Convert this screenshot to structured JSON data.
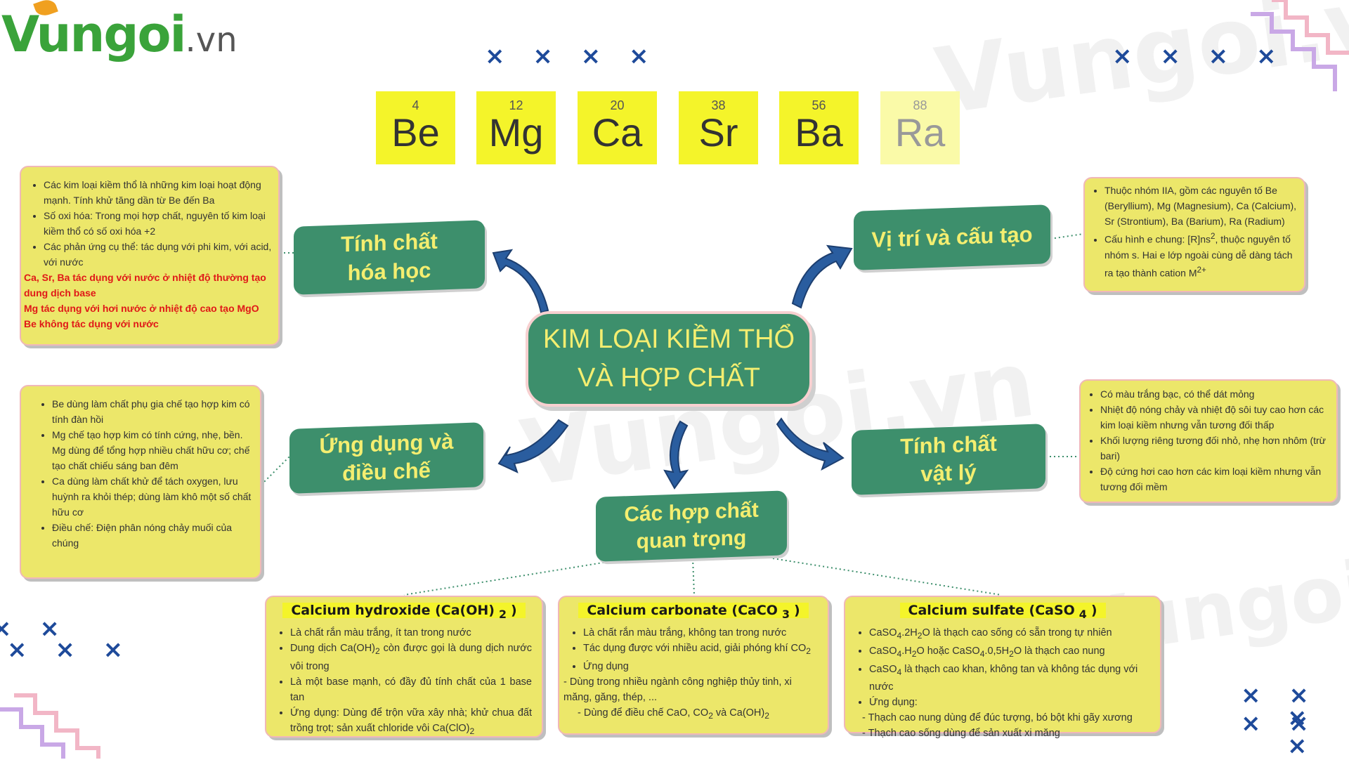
{
  "logo": {
    "main": "Vungoi",
    "suffix": ".vn"
  },
  "watermark": "Vungoi.vn",
  "decor": {
    "crosses4": "× × × ×",
    "crosses3": "× × ×",
    "crosses2": "× ×",
    "cross1": "×"
  },
  "elements": [
    {
      "number": "4",
      "symbol": "Be"
    },
    {
      "number": "12",
      "symbol": "Mg"
    },
    {
      "number": "20",
      "symbol": "Ca"
    },
    {
      "number": "38",
      "symbol": "Sr"
    },
    {
      "number": "56",
      "symbol": "Ba"
    },
    {
      "number": "88",
      "symbol": "Ra"
    }
  ],
  "center": {
    "line1": "KIM LOẠI KIỀM THỔ",
    "line2": "VÀ HỢP CHẤT"
  },
  "nodes": {
    "chem_line1": "Tính chất",
    "chem_line2": "hóa học",
    "position": "Vị trí và cấu tạo",
    "app_line1": "Ứng dụng và",
    "app_line2": "điều chế",
    "phys_line1": "Tính chất",
    "phys_line2": "vật lý",
    "comp_line1": "Các hợp chất",
    "comp_line2": "quan trọng"
  },
  "chem_info": {
    "items": [
      "Các kim loại kiềm thổ là những kim loại hoạt động mạnh. Tính khử tăng dần từ Be đến Ba",
      "Số oxi hóa: Trong mọi hợp chất, nguyên tố kim loại kiềm thổ có số oxi hóa +2",
      "Các phản ứng cụ thể: tác dụng với phi kim, với acid, với nước"
    ],
    "red": [
      "Ca, Sr, Ba tác dụng với nước ở nhiệt độ thường tạo dung dịch base",
      "Mg tác dụng với hơi nước ở nhiệt độ cao tạo MgO",
      "Be không tác dụng với nước"
    ]
  },
  "position_info": {
    "item1": "Thuộc nhóm IIA, gồm các nguyên tố Be (Beryllium), Mg (Magnesium), Ca (Calcium), Sr (Strontium), Ba (Barium), Ra (Radium)",
    "item2_a": "Cấu hình e chung: [R]ns",
    "item2_sup": "2",
    "item2_b": ", thuộc nguyên tố nhóm s. Hai e lớp ngoài cùng dễ dàng tách ra tạo thành cation M",
    "item2_sup2": "2+"
  },
  "app_info": {
    "items": [
      "Be dùng làm chất phụ gia chế tạo hợp kim có tính đàn hồi",
      "Mg chế tạo hợp kim có tính cứng, nhẹ, bền. Mg dùng để tổng hợp nhiều chất hữu cơ; chế tạo chất chiếu sáng ban đêm",
      "Ca dùng làm chất khử để tách oxygen, lưu huỳnh ra khỏi thép; dùng làm khô một số chất hữu cơ",
      "Điều chế: Điện phân nóng chảy muối của chúng"
    ]
  },
  "phys_info": {
    "items": [
      "Có màu trắng bạc, có thể dát mỏng",
      "Nhiệt độ nóng chảy và nhiệt độ sôi tuy cao hơn các kim loại kiềm nhưng vẫn tương đối thấp",
      "Khối lượng riêng tương đối nhỏ, nhẹ hơn nhôm (trừ bari)",
      "Độ cứng hơi cao hơn các kim loại kiềm nhưng vẫn tương đối mềm"
    ]
  },
  "caoh2": {
    "title_a": "Calcium hydroxide (Ca(OH)",
    "title_sub": "2",
    "title_b": ")",
    "item1": "Là chất rắn màu trắng, ít tan trong nước",
    "item2_a": "Dung dịch Ca(OH)",
    "item2_sub": "2",
    "item2_b": " còn được gọi là dung dịch nước vôi trong",
    "item3": "Là một base mạnh, có đầy đủ tính chất của 1 base tan",
    "item4_a": "Ứng dụng: Dùng để trộn vữa xây nhà; khử chua đất trồng trọt; sản xuất chloride vôi Ca(ClO)",
    "item4_sub": "2"
  },
  "caco3": {
    "title_a": "Calcium carbonate (CaCO",
    "title_sub": "3",
    "title_b": ")",
    "item1": "Là chất rắn màu trắng, không tan trong nước",
    "item2_a": "Tác dụng được với nhiều acid, giải phóng khí CO",
    "item2_sub": "2",
    "item3": "Ứng dụng",
    "dash1": "- Dùng trong nhiều ngành công nghiệp thủy tinh, xi măng, găng, thép, ...",
    "dash2_a": "- Dùng để điều chế CaO, CO",
    "dash2_sub1": "2",
    "dash2_b": " và Ca(OH)",
    "dash2_sub2": "2"
  },
  "caso4": {
    "title_a": "Calcium sulfate (CaSO",
    "title_sub": "4",
    "title_b": ")",
    "i1_a": "CaSO",
    "i1_s1": "4",
    "i1_b": ".2H",
    "i1_s2": "2",
    "i1_c": "O là thạch cao sống có sẵn trong tự nhiên",
    "i2_a": "CaSO",
    "i2_s1": "4",
    "i2_b": ".H",
    "i2_s2": "2",
    "i2_c": "O hoặc CaSO",
    "i2_s3": "4",
    "i2_d": ".0,5H",
    "i2_s4": "2",
    "i2_e": "O là thạch cao nung",
    "i3_a": "CaSO",
    "i3_s1": "4",
    "i3_b": " là thạch cao khan, không tan và không tác dụng với nước",
    "i4": "Ứng dụng:",
    "dash1": "- Thạch cao nung dùng để đúc tượng, bó bột khi gãy xương",
    "dash2": "- Thạch cao sống dùng để sản xuất xi măng"
  }
}
